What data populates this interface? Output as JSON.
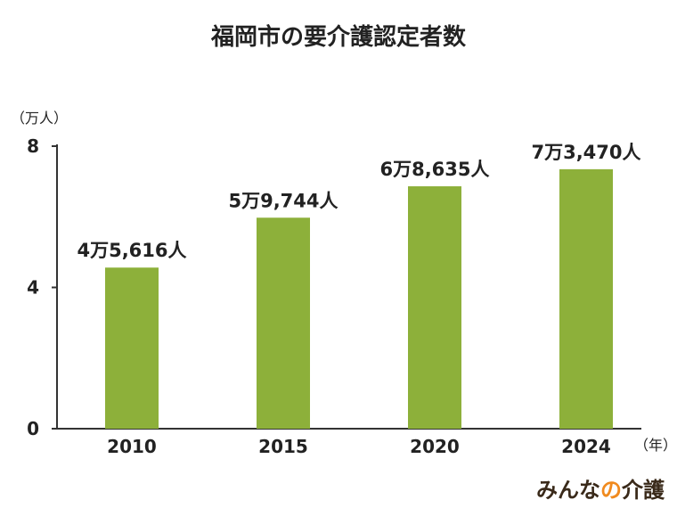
{
  "chart_data": {
    "type": "bar",
    "title": "福岡市の要介護認定者数",
    "y_unit_label": "（万人）",
    "x_unit_label": "（年）",
    "categories": [
      "2010",
      "2015",
      "2020",
      "2024"
    ],
    "values": [
      4.5616,
      5.9744,
      6.8635,
      7.347
    ],
    "data_labels": [
      "4万5,616人",
      "5万9,744人",
      "6万8,635人",
      "7万3,470人"
    ],
    "ylim": [
      0,
      8
    ],
    "yticks": [
      0,
      4,
      8
    ],
    "grid": false,
    "bar_color": "#8db03a",
    "axis_color": "#333333"
  },
  "brand": {
    "part1": "みんな",
    "part2": "の",
    "part3": "介護",
    "accent_color": "#f08a1e"
  }
}
